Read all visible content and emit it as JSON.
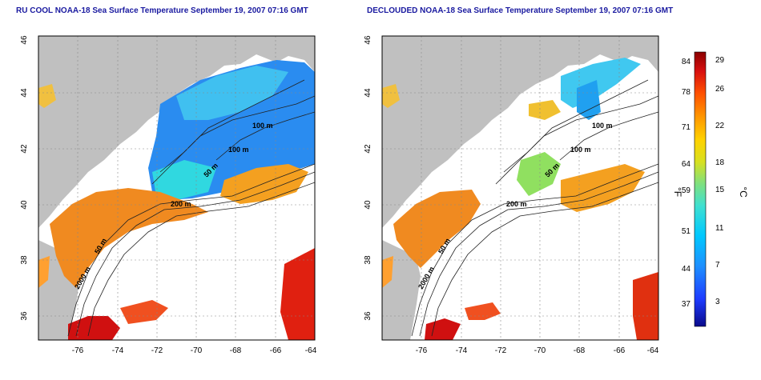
{
  "panels": [
    {
      "title": "RU COOL NOAA-18 Sea Surface Temperature September 19, 2007 07:16 GMT",
      "contour_labels": [
        "100 m",
        "100 m",
        "50 m",
        "200 m",
        "50 m",
        "2000 m"
      ]
    },
    {
      "title": "DECLOUDED NOAA-18 Sea Surface Temperature September 19, 2007 07:16 GMT",
      "contour_labels": [
        "100 m",
        "100 m",
        "50 m",
        "200 m",
        "50 m",
        "2000 m"
      ]
    }
  ],
  "axes": {
    "x_ticks": [
      "-76",
      "-74",
      "-72",
      "-70",
      "-68",
      "-66",
      "-64"
    ],
    "y_ticks": [
      "46",
      "44",
      "42",
      "40",
      "38",
      "36"
    ]
  },
  "colorbar": {
    "f_label": "°F",
    "c_label": "°C",
    "f_ticks": [
      "84",
      "78",
      "71",
      "64",
      "59",
      "51",
      "44",
      "37"
    ],
    "c_ticks": [
      "29",
      "26",
      "22",
      "18",
      "15",
      "11",
      "7",
      "3"
    ],
    "colors": [
      "#0a0a8a",
      "#1e3cff",
      "#1e90ff",
      "#00c8ff",
      "#40e0d0",
      "#7fe07f",
      "#d8e020",
      "#ffd200",
      "#ff9a00",
      "#ff5000",
      "#d81010",
      "#8b0000"
    ]
  },
  "colors": {
    "land": "#c0c0c0",
    "cloud": "#ffffff",
    "title": "#1a1aa0"
  }
}
